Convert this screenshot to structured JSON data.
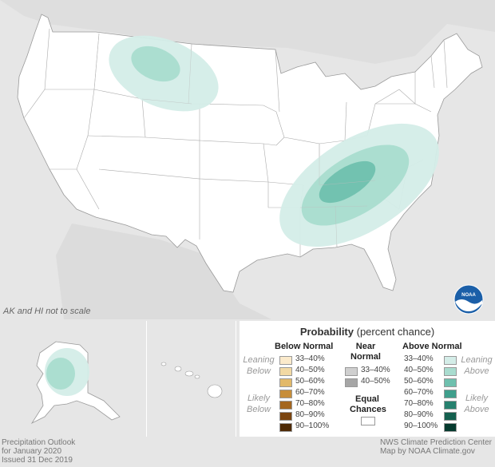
{
  "map": {
    "scale_note": "AK and HI not to scale",
    "logo_text": "NOAA"
  },
  "legend": {
    "title_bold": "Probability",
    "title_rest": " (percent chance)",
    "below_normal": {
      "header": "Below Normal",
      "leaning": "Leaning\nBelow",
      "likely": "Likely\nBelow",
      "items": [
        {
          "label": "33–40%",
          "color": "#fbeacb"
        },
        {
          "label": "40–50%",
          "color": "#f2d9a4"
        },
        {
          "label": "50–60%",
          "color": "#e2b96a"
        },
        {
          "label": "60–70%",
          "color": "#c78e3a"
        },
        {
          "label": "70–80%",
          "color": "#a4661e"
        },
        {
          "label": "80–90%",
          "color": "#7b4510"
        },
        {
          "label": "90–100%",
          "color": "#4e2a06"
        }
      ]
    },
    "near_normal": {
      "header_line1": "Near",
      "header_line2": "Normal",
      "items": [
        {
          "label": "33–40%",
          "color": "#cfcfcf"
        },
        {
          "label": "40–50%",
          "color": "#a6a6a6"
        }
      ]
    },
    "equal_chances": {
      "line1": "Equal",
      "line2": "Chances",
      "color": "#ffffff"
    },
    "above_normal": {
      "header": "Above Normal",
      "leaning": "Leaning\nAbove",
      "likely": "Likely\nAbove",
      "items": [
        {
          "label": "33–40%",
          "color": "#d4ede8"
        },
        {
          "label": "40–50%",
          "color": "#a9dccf"
        },
        {
          "label": "50–60%",
          "color": "#6fc0ae"
        },
        {
          "label": "60–70%",
          "color": "#3f9f8c"
        },
        {
          "label": "70–80%",
          "color": "#26806e"
        },
        {
          "label": "80–90%",
          "color": "#14604f"
        },
        {
          "label": "90–100%",
          "color": "#053a2e"
        }
      ]
    }
  },
  "footer": {
    "left_line1": "Precipitation Outlook",
    "left_line2": "for January 2020",
    "left_line3": "Issued 31 Dec 2019",
    "right_line1": "NWS Climate Prediction Center",
    "right_line2": "Map by NOAA Climate.gov"
  }
}
